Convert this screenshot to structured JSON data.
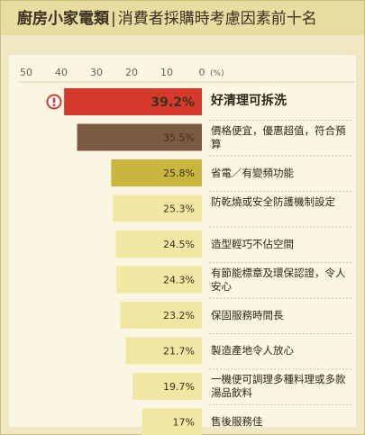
{
  "title": {
    "main": "廚房小家電類",
    "separator": "|",
    "sub": "消費者採購時考慮因素前十名"
  },
  "colors": {
    "background": "#f0e8c4",
    "panel": "#fbf6e3",
    "title_bar": "#e8dca0",
    "bar_1": "#d63a2c",
    "bar_2": "#7a5a40",
    "bar_3": "#c8b63e",
    "bar_rest": "#efe7a2",
    "alert_icon": "#d63a2c"
  },
  "chart_data": {
    "type": "bar",
    "orientation": "horizontal",
    "x_reversed": true,
    "xlim": [
      0,
      50
    ],
    "x_ticks": [
      "50",
      "40",
      "30",
      "20",
      "10",
      "0"
    ],
    "unit": "(%)",
    "grid": false,
    "highlight_icon": "exclamation-circle-icon",
    "categories": [
      "好清理可拆洗",
      "價格便宜，優惠超值，符合預算",
      "省電／有變頻功能",
      "防乾燒或安全防護機制設定",
      "造型輕巧不佔空間",
      "有節能標章及環保認證，令人安心",
      "保固服務時間長",
      "製造產地令人放心",
      "一機便可調理多種料理或多款湯品飲料",
      "售後服務佳"
    ],
    "values": [
      39.2,
      35.5,
      25.8,
      25.3,
      24.5,
      24.3,
      23.2,
      21.7,
      19.7,
      17
    ],
    "value_labels": [
      "39.2%",
      "35.5%",
      "25.8%",
      "25.3%",
      "24.5%",
      "24.3%",
      "23.2%",
      "21.7%",
      "19.7%",
      "17%"
    ]
  }
}
